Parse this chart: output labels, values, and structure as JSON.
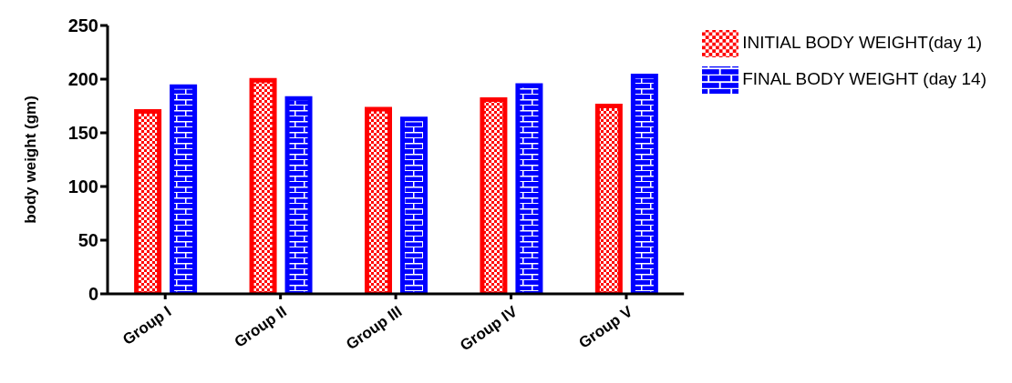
{
  "chart_data": {
    "type": "bar",
    "ylabel": "body weight (gm)",
    "categories": [
      "Group I",
      "Group II",
      "Group III",
      "Group IV",
      "Group V"
    ],
    "series": [
      {
        "name": "INITIAL BODY WEIGHT(day 1)",
        "color": "#ff0000",
        "values": [
          170,
          199,
          172,
          181,
          175
        ]
      },
      {
        "name": "FINAL BODY WEIGHT (day 14)",
        "color": "#0000ff",
        "values": [
          193,
          182,
          163,
          194,
          203
        ]
      }
    ],
    "ylim": [
      0,
      250
    ],
    "yticks": [
      0,
      50,
      100,
      150,
      200,
      250
    ],
    "grid": false,
    "legend": "top right"
  }
}
